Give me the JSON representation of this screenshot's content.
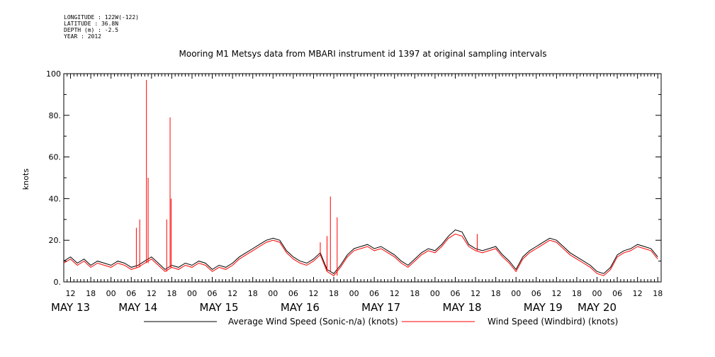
{
  "metadata": {
    "longitude": "LONGITUDE : 122W(-122)",
    "latitude": "LATITUDE : 36.8N",
    "depth": "DEPTH (m) : -2.5",
    "year": "YEAR : 2012"
  },
  "chart_data": {
    "type": "line",
    "title": "Mooring M1 Metsys data from MBARI instrument id 1397 at original sampling intervals",
    "ylabel": "knots",
    "xlabel": "",
    "ylim": [
      0,
      100
    ],
    "xlim_hours": [
      -14,
      163
    ],
    "y_ticks": [
      "0.",
      "20.",
      "40.",
      "60.",
      "80.",
      "100"
    ],
    "x_hour_ticks": [
      {
        "h": -12,
        "label": "12"
      },
      {
        "h": -6,
        "label": "18"
      },
      {
        "h": 0,
        "label": "00"
      },
      {
        "h": 6,
        "label": "06"
      },
      {
        "h": 12,
        "label": "12"
      },
      {
        "h": 18,
        "label": "18"
      },
      {
        "h": 24,
        "label": "00"
      },
      {
        "h": 30,
        "label": "06"
      },
      {
        "h": 36,
        "label": "12"
      },
      {
        "h": 42,
        "label": "18"
      },
      {
        "h": 48,
        "label": "00"
      },
      {
        "h": 54,
        "label": "06"
      },
      {
        "h": 60,
        "label": "12"
      },
      {
        "h": 66,
        "label": "18"
      },
      {
        "h": 72,
        "label": "00"
      },
      {
        "h": 78,
        "label": "06"
      },
      {
        "h": 84,
        "label": "12"
      },
      {
        "h": 90,
        "label": "18"
      },
      {
        "h": 96,
        "label": "00"
      },
      {
        "h": 102,
        "label": "06"
      },
      {
        "h": 108,
        "label": "12"
      },
      {
        "h": 114,
        "label": "18"
      },
      {
        "h": 120,
        "label": "00"
      },
      {
        "h": 126,
        "label": "06"
      },
      {
        "h": 132,
        "label": "12"
      },
      {
        "h": 138,
        "label": "18"
      },
      {
        "h": 144,
        "label": "00"
      },
      {
        "h": 150,
        "label": "06"
      },
      {
        "h": 156,
        "label": "12"
      },
      {
        "h": 162,
        "label": "18"
      }
    ],
    "date_labels": [
      {
        "h": -12,
        "label": "MAY 13"
      },
      {
        "h": 8,
        "label": "MAY 14"
      },
      {
        "h": 32,
        "label": "MAY 15"
      },
      {
        "h": 56,
        "label": "MAY 16"
      },
      {
        "h": 80,
        "label": "MAY 17"
      },
      {
        "h": 104,
        "label": "MAY 18"
      },
      {
        "h": 128,
        "label": "MAY 19"
      },
      {
        "h": 144,
        "label": "MAY 20"
      }
    ],
    "series": [
      {
        "name": "Average Wind Speed (Sonic-n/a) (knots)",
        "color": "#000000",
        "x": [
          -14,
          -12,
          -10,
          -8,
          -6,
          -4,
          -2,
          0,
          2,
          4,
          6,
          8,
          10,
          12,
          14,
          16,
          18,
          20,
          22,
          24,
          26,
          28,
          30,
          32,
          34,
          36,
          38,
          40,
          42,
          44,
          46,
          48,
          50,
          52,
          54,
          56,
          58,
          60,
          62,
          64,
          66,
          68,
          70,
          72,
          74,
          76,
          78,
          80,
          82,
          84,
          86,
          88,
          90,
          92,
          94,
          96,
          98,
          100,
          102,
          104,
          106,
          108,
          110,
          112,
          114,
          116,
          118,
          120,
          122,
          124,
          126,
          128,
          130,
          132,
          134,
          136,
          138,
          140,
          142,
          144,
          146,
          148,
          150,
          152,
          154,
          156,
          158,
          160,
          162
        ],
        "y": [
          10,
          12,
          9,
          11,
          8,
          10,
          9,
          8,
          10,
          9,
          7,
          8,
          10,
          12,
          9,
          6,
          8,
          7,
          9,
          8,
          10,
          9,
          6,
          8,
          7,
          9,
          12,
          14,
          16,
          18,
          20,
          21,
          20,
          15,
          12,
          10,
          9,
          11,
          14,
          6,
          4,
          8,
          13,
          16,
          17,
          18,
          16,
          17,
          15,
          13,
          10,
          8,
          11,
          14,
          16,
          15,
          18,
          22,
          25,
          24,
          18,
          16,
          15,
          16,
          17,
          13,
          10,
          6,
          12,
          15,
          17,
          19,
          21,
          20,
          17,
          14,
          12,
          10,
          8,
          5,
          4,
          7,
          13,
          15,
          16,
          18,
          17,
          16,
          12
        ],
        "values_precision": "approx, knots"
      },
      {
        "name": "Wind Speed (Windbird) (knots)",
        "color": "#ff0000",
        "x": [
          -14,
          -12,
          -10,
          -8,
          -6,
          -4,
          -2,
          0,
          2,
          4,
          6,
          8,
          10,
          12,
          14,
          16,
          18,
          20,
          22,
          24,
          26,
          28,
          30,
          32,
          34,
          36,
          38,
          40,
          42,
          44,
          46,
          48,
          50,
          52,
          54,
          56,
          58,
          60,
          62,
          64,
          66,
          68,
          70,
          72,
          74,
          76,
          78,
          80,
          82,
          84,
          86,
          88,
          90,
          92,
          94,
          96,
          98,
          100,
          102,
          104,
          106,
          108,
          110,
          112,
          114,
          116,
          118,
          120,
          122,
          124,
          126,
          128,
          130,
          132,
          134,
          136,
          138,
          140,
          142,
          144,
          146,
          148,
          150,
          152,
          154,
          156,
          158,
          160,
          162
        ],
        "y": [
          9,
          11,
          8,
          10,
          7,
          9,
          8,
          7,
          9,
          8,
          6,
          7,
          9,
          11,
          8,
          5,
          7,
          6,
          8,
          7,
          9,
          8,
          5,
          7,
          6,
          8,
          11,
          13,
          15,
          17,
          19,
          20,
          19,
          14,
          11,
          9,
          8,
          10,
          13,
          5,
          3,
          7,
          12,
          15,
          16,
          17,
          15,
          16,
          14,
          12,
          9,
          7,
          10,
          13,
          15,
          14,
          17,
          21,
          23,
          22,
          17,
          15,
          14,
          15,
          16,
          12,
          9,
          5,
          11,
          14,
          16,
          18,
          20,
          19,
          16,
          13,
          11,
          9,
          7,
          4,
          3,
          6,
          12,
          14,
          15,
          17,
          16,
          15,
          11
        ],
        "spikes": [
          {
            "h": 10.5,
            "y": 97
          },
          {
            "h": 11,
            "y": 50
          },
          {
            "h": 17.5,
            "y": 79
          },
          {
            "h": 17.8,
            "y": 40
          },
          {
            "h": 16.5,
            "y": 30
          },
          {
            "h": 8.5,
            "y": 30
          },
          {
            "h": 7.5,
            "y": 26
          },
          {
            "h": 65,
            "y": 41
          },
          {
            "h": 64,
            "y": 22
          },
          {
            "h": 67,
            "y": 31
          },
          {
            "h": 62,
            "y": 19
          },
          {
            "h": 108.5,
            "y": 23
          }
        ],
        "values_precision": "approx, knots"
      }
    ],
    "legend": {
      "placement": "bottom",
      "items": [
        {
          "label": "Average Wind Speed (Sonic-n/a) (knots)",
          "color": "#000000"
        },
        {
          "label": "Wind Speed (Windbird) (knots)",
          "color": "#ff0000"
        }
      ]
    },
    "grid": false
  }
}
